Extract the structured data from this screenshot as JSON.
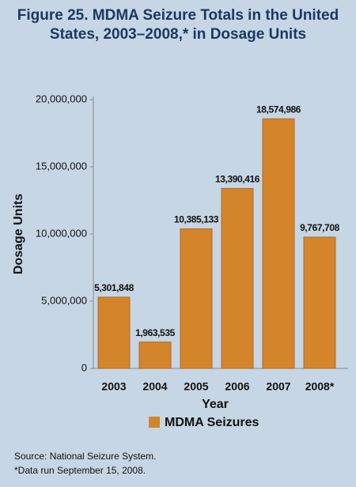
{
  "chart_data": {
    "type": "bar",
    "title": "Figure 25. MDMA Seizure Totals in the United States, 2003–2008,* in Dosage Units",
    "x_label": "Year",
    "y_label": "Dosage Units",
    "categories": [
      "2003",
      "2004",
      "2005",
      "2006",
      "2007",
      "2008*"
    ],
    "series": [
      {
        "name": "MDMA Seizures",
        "color": "#d4852c",
        "values": [
          5301848,
          1963535,
          10385133,
          13390416,
          18574986,
          9767708
        ],
        "value_labels": [
          "5,301,848",
          "1,963,535",
          "10,385,133",
          "13,390,416",
          "18,574,986",
          "9,767,708"
        ]
      }
    ],
    "ylim": [
      0,
      20000000
    ],
    "yticks": [
      0,
      {
        "value": 5000000,
        "label": "5,000,000"
      },
      {
        "value": 10000000,
        "label": "10,000,000"
      },
      {
        "value": 15000000,
        "label": "15,000,000"
      },
      {
        "value": 20000000,
        "label": "20,000,000"
      }
    ],
    "grid": false,
    "source": "Source: National Seizure System.",
    "footnote": "*Data run September 15, 2008."
  }
}
